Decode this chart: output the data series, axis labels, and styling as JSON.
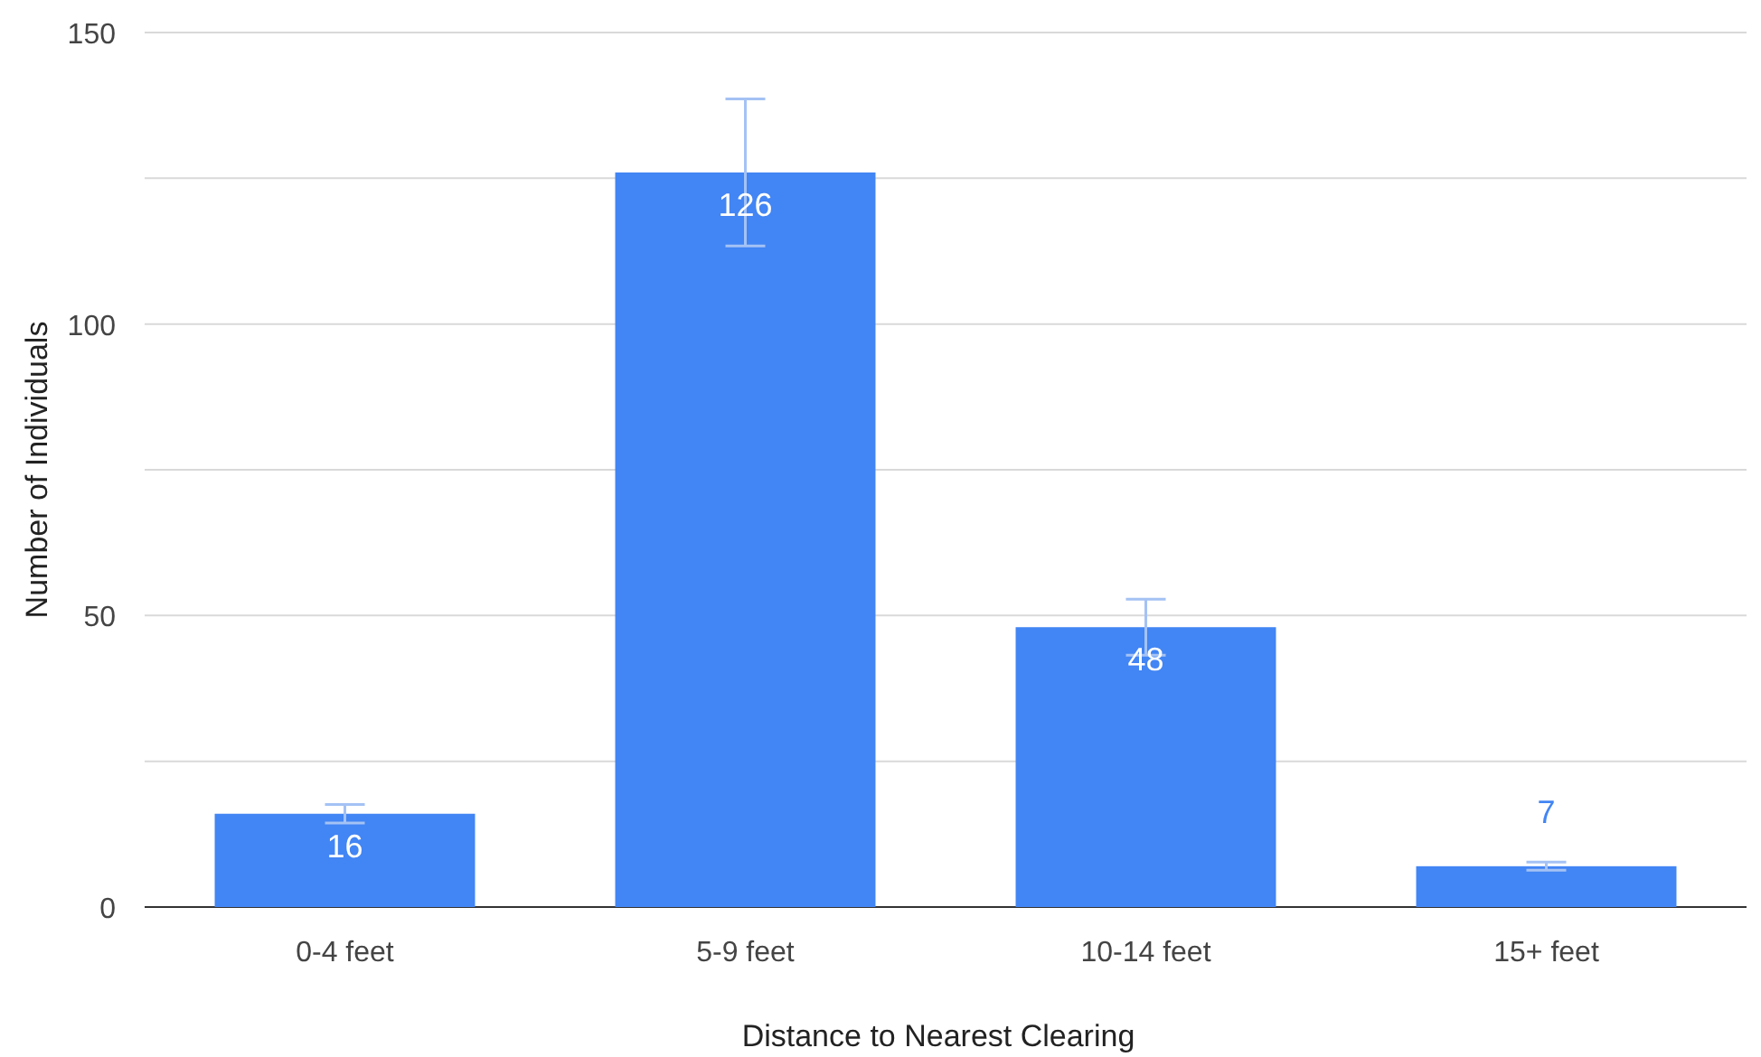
{
  "chart_data": {
    "type": "bar",
    "xlabel": "Distance to Nearest Clearing",
    "ylabel": "Number of Individuals",
    "categories": [
      "0-4 feet",
      "5-9 feet",
      "10-14 feet",
      "15+ feet"
    ],
    "values": [
      16,
      126,
      48,
      7
    ],
    "errors": [
      1.6,
      12.6,
      4.8,
      0.7
    ],
    "color": "#4285f4",
    "ylim": [
      0,
      150
    ],
    "yticks": [
      0,
      {
        "value": 25,
        "label": null
      },
      50,
      {
        "value": 75,
        "label": null
      },
      100,
      {
        "value": 125,
        "label": null
      },
      150
    ],
    "grid": "y",
    "data_labels": true
  }
}
